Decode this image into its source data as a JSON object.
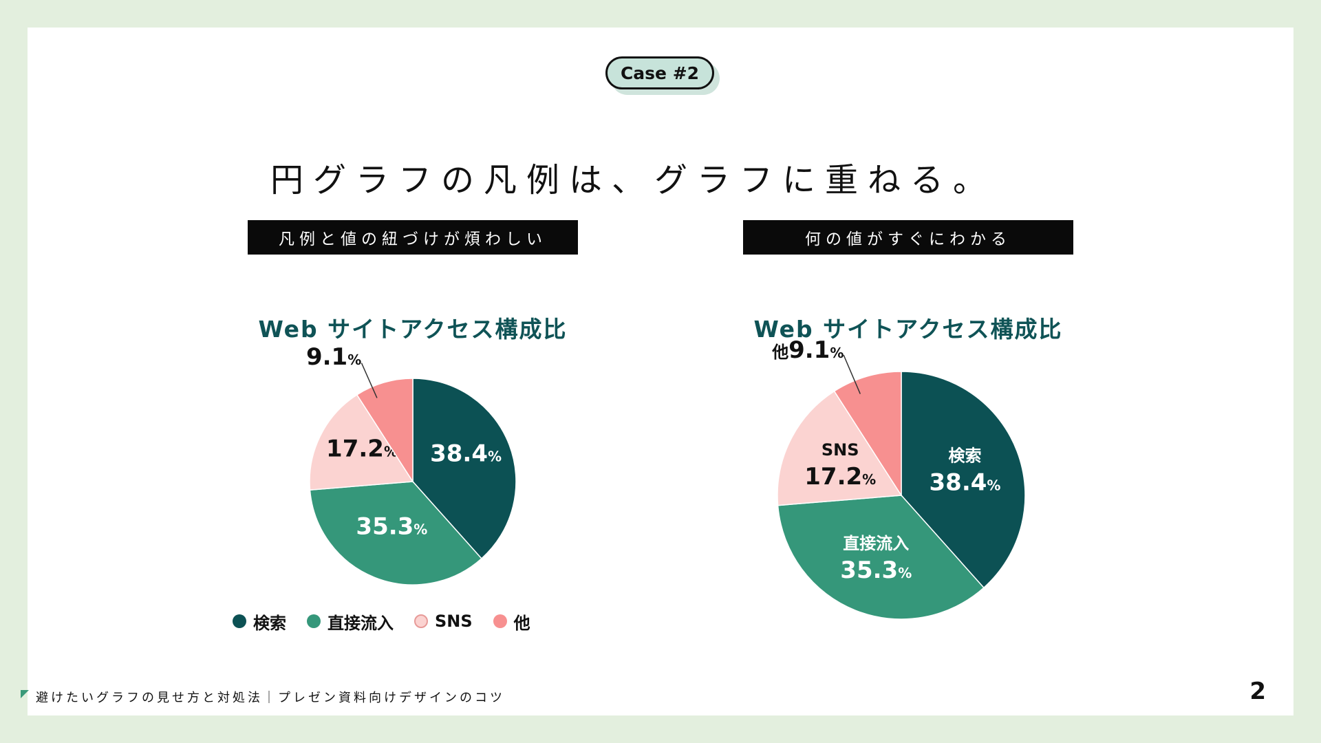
{
  "badge": "Case #2",
  "title": "円グラフの凡例は、グラフに重ねる。",
  "left_panel": {
    "tag": "凡例と値の紐づけが煩わしい"
  },
  "right_panel": {
    "tag": "何の値がすぐにわかる"
  },
  "legend": [
    {
      "label": "検索",
      "color": "#0c5154"
    },
    {
      "label": "直接流入",
      "color": "#35977a"
    },
    {
      "label": "SNS",
      "color": "#fbd3d1"
    },
    {
      "label": "他",
      "color": "#f79090"
    }
  ],
  "chart_data": [
    {
      "type": "pie",
      "title": "Web サイトアクセス構成比",
      "labels_on_chart": false,
      "legend": "bottom",
      "slices": [
        {
          "name": "検索",
          "value": 38.4,
          "color": "#0c5154",
          "label_color": "#ffffff"
        },
        {
          "name": "直接流入",
          "value": 35.3,
          "color": "#35977a",
          "label_color": "#ffffff"
        },
        {
          "name": "SNS",
          "value": 17.2,
          "color": "#fbd3d1",
          "label_color": "#111111"
        },
        {
          "name": "他",
          "value": 9.1,
          "color": "#f79090",
          "label_color": "#111111"
        }
      ]
    },
    {
      "type": "pie",
      "title": "Web サイトアクセス構成比",
      "labels_on_chart": true,
      "legend": "none",
      "slices": [
        {
          "name": "検索",
          "value": 38.4,
          "color": "#0c5154",
          "label_color": "#ffffff"
        },
        {
          "name": "直接流入",
          "value": 35.3,
          "color": "#35977a",
          "label_color": "#ffffff"
        },
        {
          "name": "SNS",
          "value": 17.2,
          "color": "#fbd3d1",
          "label_color": "#111111"
        },
        {
          "name": "他",
          "value": 9.1,
          "color": "#f79090",
          "label_color": "#111111"
        }
      ]
    }
  ],
  "percent_sign": "%",
  "footer": "避けたいグラフの見せ方と対処法｜プレゼン資料向けデザインのコツ",
  "page_number": "2"
}
